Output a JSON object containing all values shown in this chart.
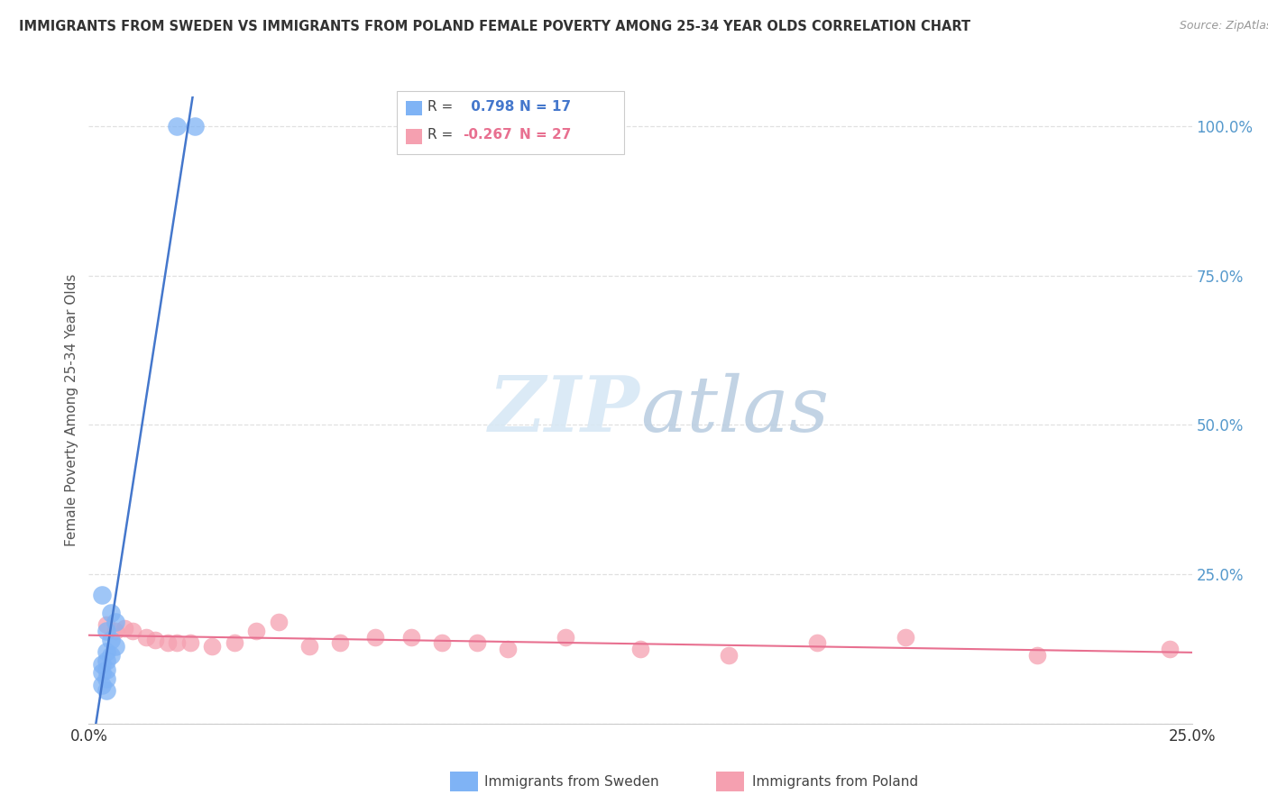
{
  "title": "IMMIGRANTS FROM SWEDEN VS IMMIGRANTS FROM POLAND FEMALE POVERTY AMONG 25-34 YEAR OLDS CORRELATION CHART",
  "source": "Source: ZipAtlas.com",
  "ylabel": "Female Poverty Among 25-34 Year Olds",
  "y_ticks": [
    0.0,
    0.25,
    0.5,
    0.75,
    1.0
  ],
  "y_tick_labels": [
    "",
    "25.0%",
    "50.0%",
    "75.0%",
    "100.0%"
  ],
  "xlim": [
    0.0,
    0.25
  ],
  "ylim": [
    0.0,
    1.05
  ],
  "sweden_color": "#7fb3f5",
  "poland_color": "#f5a0b0",
  "sweden_line_color": "#4477cc",
  "poland_line_color": "#e87090",
  "sweden_R": 0.798,
  "sweden_N": 17,
  "poland_R": -0.267,
  "poland_N": 27,
  "legend_label_sweden": "Immigrants from Sweden",
  "legend_label_poland": "Immigrants from Poland",
  "sweden_scatter_x": [
    0.02,
    0.024,
    0.003,
    0.005,
    0.006,
    0.004,
    0.005,
    0.006,
    0.004,
    0.005,
    0.004,
    0.003,
    0.004,
    0.003,
    0.004,
    0.003,
    0.004
  ],
  "sweden_scatter_y": [
    1.0,
    1.0,
    0.215,
    0.185,
    0.17,
    0.155,
    0.14,
    0.13,
    0.12,
    0.115,
    0.105,
    0.1,
    0.09,
    0.085,
    0.075,
    0.065,
    0.055
  ],
  "poland_scatter_x": [
    0.004,
    0.006,
    0.008,
    0.01,
    0.013,
    0.015,
    0.018,
    0.02,
    0.023,
    0.028,
    0.033,
    0.038,
    0.043,
    0.05,
    0.057,
    0.065,
    0.073,
    0.08,
    0.088,
    0.095,
    0.108,
    0.125,
    0.145,
    0.165,
    0.185,
    0.215,
    0.245
  ],
  "poland_scatter_y": [
    0.165,
    0.155,
    0.16,
    0.155,
    0.145,
    0.14,
    0.135,
    0.135,
    0.135,
    0.13,
    0.135,
    0.155,
    0.17,
    0.13,
    0.135,
    0.145,
    0.145,
    0.135,
    0.135,
    0.125,
    0.145,
    0.125,
    0.115,
    0.135,
    0.145,
    0.115,
    0.125
  ],
  "watermark_zip": "ZIP",
  "watermark_atlas": "atlas",
  "background_color": "#ffffff",
  "grid_color": "#e0e0e0",
  "tick_color": "#5599cc"
}
